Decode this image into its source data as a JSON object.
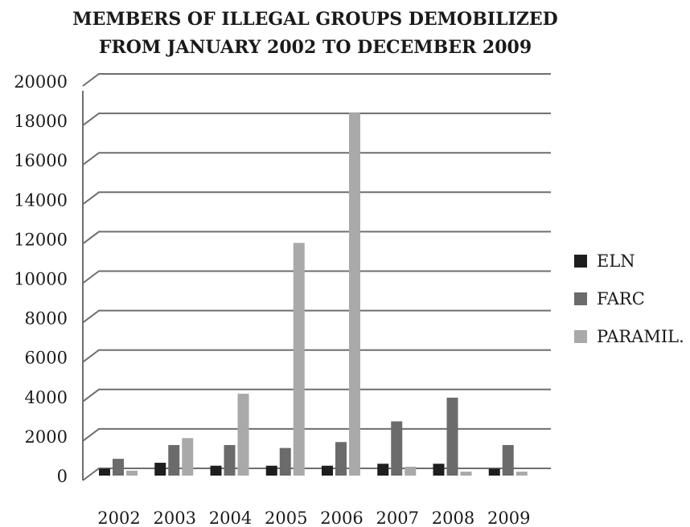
{
  "chart_data": {
    "type": "bar",
    "title_lines": [
      "MEMBERS OF ILLEGAL GROUPS DEMOBILIZED",
      "FROM JANUARY 2002 TO DECEMBER 2009"
    ],
    "categories": [
      "2002",
      "2003",
      "2004",
      "2005",
      "2006",
      "2007",
      "2008",
      "2009"
    ],
    "series": [
      {
        "name": "ELN",
        "color": "#1e1e1e",
        "values": [
          350,
          650,
          500,
          500,
          500,
          600,
          600,
          350
        ]
      },
      {
        "name": "FARC",
        "color": "#6b6b6b",
        "values": [
          850,
          1550,
          1550,
          1400,
          1700,
          2750,
          3950,
          1550
        ]
      },
      {
        "name": "PARAMIL.",
        "color": "#a9a9a9",
        "values": [
          250,
          1900,
          4150,
          11800,
          18400,
          450,
          200,
          200
        ]
      }
    ],
    "ylim": [
      0,
      20000
    ],
    "yticks": [
      "0",
      "2000",
      "4000",
      "6000",
      "8000",
      "10000",
      "12000",
      "14000",
      "16000",
      "18000",
      "20000"
    ],
    "ytick_values": [
      0,
      2000,
      4000,
      6000,
      8000,
      10000,
      12000,
      14000,
      16000,
      18000,
      20000
    ],
    "grid": true,
    "legend_position": "right"
  }
}
